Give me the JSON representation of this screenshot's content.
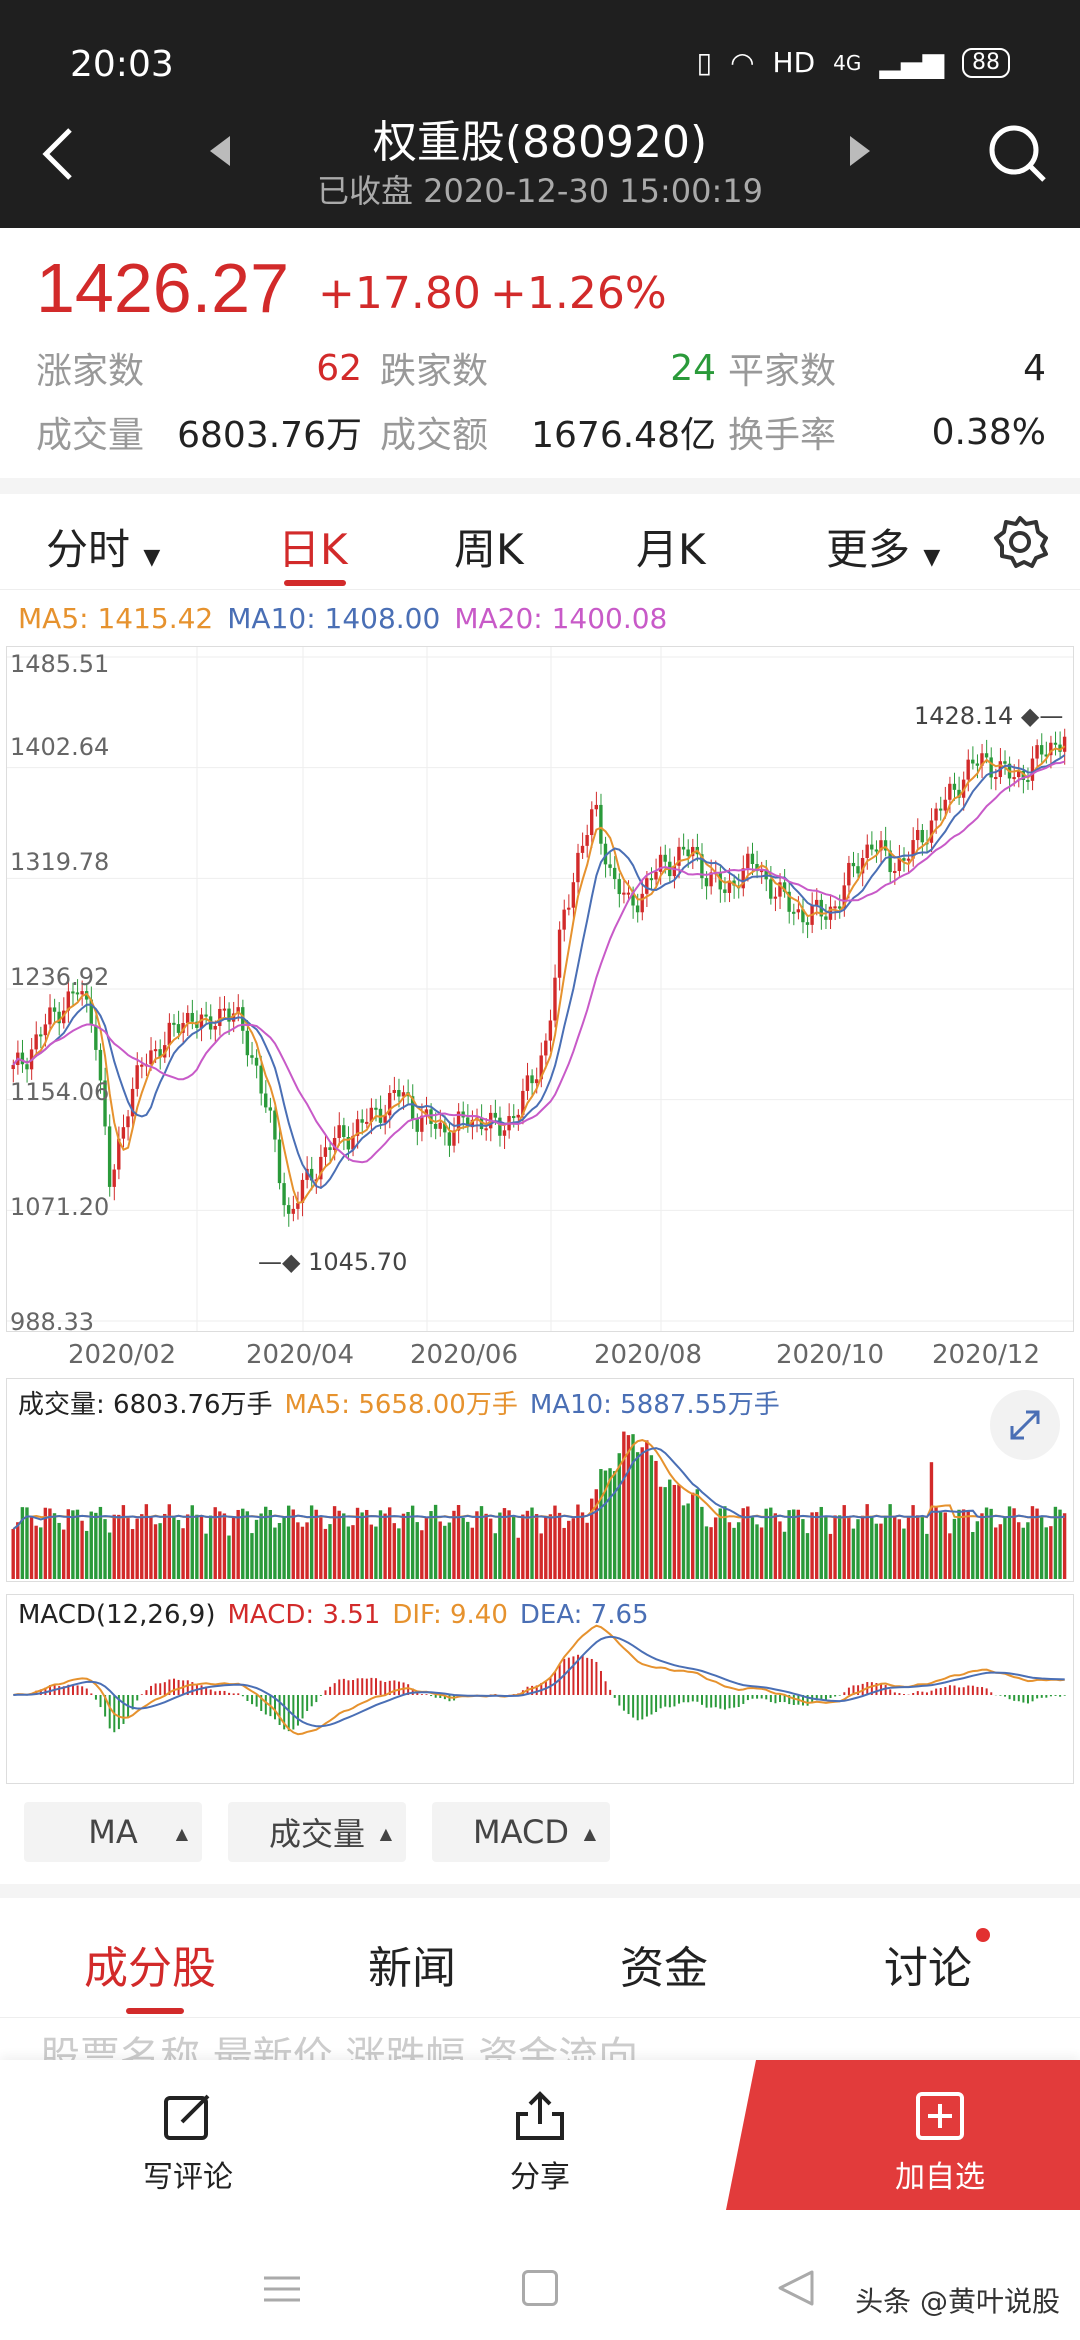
{
  "status_bar": {
    "time": "20:03",
    "network": "HD",
    "signal": "4G",
    "battery": "88"
  },
  "header": {
    "title": "权重股(880920)",
    "subtitle": "已收盘 2020-12-30 15:00:19"
  },
  "quote": {
    "price": "1426.27",
    "change": "+17.80",
    "change_pct": "+1.26%",
    "rows": [
      [
        {
          "label": "涨家数",
          "value": "62"
        },
        {
          "label": "跌家数",
          "value": "24"
        },
        {
          "label": "平家数",
          "value": "4"
        }
      ],
      [
        {
          "label": "成交量",
          "value": "6803.76万"
        },
        {
          "label": "成交额",
          "value": "1676.48亿"
        },
        {
          "label": "换手率",
          "value": "0.38%"
        }
      ]
    ]
  },
  "ktabs": {
    "fenshi": "分时",
    "rik": "日K",
    "zhouk": "周K",
    "yuek": "月K",
    "more": "更多"
  },
  "ma_legend": {
    "ma5": "MA5: 1415.42",
    "ma10": "MA10: 1408.00",
    "ma20": "MA20: 1400.08"
  },
  "colors": {
    "red": "#d22a2a",
    "green": "#2a9a3a",
    "ma5": "#e6922e",
    "ma10": "#4a6fb5",
    "ma20": "#c85ac8"
  },
  "chart_data": [
    {
      "type": "candlestick",
      "title": "",
      "y_ticks": [
        "1485.51",
        "1402.64",
        "1319.78",
        "1236.92",
        "1154.06",
        "1071.20",
        "988.33"
      ],
      "ylim": [
        988.33,
        1485.51
      ],
      "x_ticks": [
        "2020/02",
        "2020/04",
        "2020/06",
        "2020/08",
        "2020/10",
        "2020/12"
      ],
      "annotations": {
        "high": "1428.14",
        "low": "1045.70"
      },
      "close_path": [
        1175,
        1190,
        1210,
        1225,
        1235,
        1215,
        1085,
        1150,
        1180,
        1195,
        1205,
        1220,
        1205,
        1225,
        1210,
        1180,
        1130,
        1065,
        1090,
        1110,
        1125,
        1130,
        1140,
        1150,
        1160,
        1140,
        1135,
        1130,
        1138,
        1140,
        1130,
        1145,
        1165,
        1200,
        1290,
        1340,
        1370,
        1320,
        1300,
        1310,
        1330,
        1335,
        1340,
        1320,
        1310,
        1325,
        1330,
        1310,
        1300,
        1290,
        1295,
        1300,
        1330,
        1345,
        1335,
        1330,
        1350,
        1365,
        1385,
        1400,
        1410,
        1400,
        1395,
        1405,
        1418,
        1426
      ]
    },
    {
      "type": "bar",
      "title": "成交量",
      "legend": {
        "vol": "成交量: 6803.76万手",
        "ma5": "MA5: 5658.00万手",
        "ma10": "MA10: 5887.55万手"
      }
    },
    {
      "type": "bar",
      "title": "MACD(12,26,9)",
      "legend": {
        "label": "MACD(12,26,9)",
        "macd": "MACD: 3.51",
        "dif": "DIF: 9.40",
        "dea": "DEA: 7.65"
      }
    }
  ],
  "indicators": [
    "MA",
    "成交量",
    "MACD"
  ],
  "content_tabs": [
    "成分股",
    "新闻",
    "资金",
    "讨论"
  ],
  "hidden_row": "股票名称            最新价        涨跌幅        资金流向",
  "actions": {
    "comment": "写评论",
    "share": "分享",
    "add": "加自选"
  },
  "watermark": "头条 @黄叶说股"
}
